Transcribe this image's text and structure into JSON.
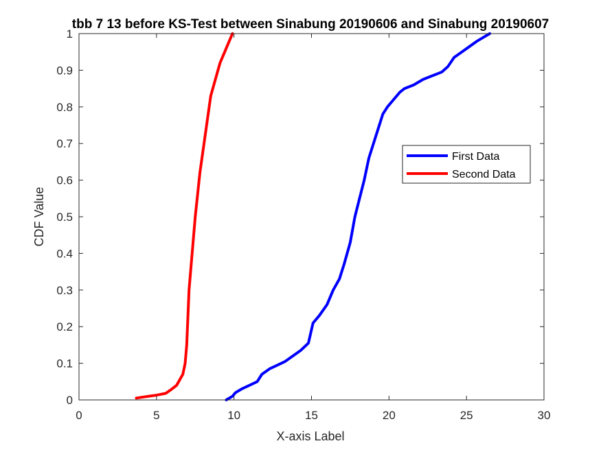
{
  "chart_data": {
    "type": "line",
    "title": "tbb 7 13 before KS-Test between Sinabung 20190606 and Sinabung 20190607",
    "xlabel": "X-axis Label",
    "ylabel": "CDF Value",
    "xlim": [
      0,
      30
    ],
    "ylim": [
      0,
      1
    ],
    "xticks": [
      0,
      5,
      10,
      15,
      20,
      25,
      30
    ],
    "yticks": [
      0,
      0.1,
      0.2,
      0.3,
      0.4,
      0.5,
      0.6,
      0.7,
      0.8,
      0.9,
      1
    ],
    "grid": false,
    "legend_position": "right",
    "series": [
      {
        "name": "First Data",
        "color": "#0000ff",
        "x": [
          9.5,
          9.9,
          10.1,
          10.5,
          11.0,
          11.5,
          11.8,
          12.3,
          12.8,
          13.3,
          13.8,
          14.3,
          14.8,
          15.1,
          15.5,
          16.0,
          16.4,
          16.8,
          17.1,
          17.5,
          17.8,
          18.1,
          18.4,
          18.7,
          19.0,
          19.3,
          19.6,
          19.9,
          20.3,
          20.7,
          21.0,
          21.6,
          22.2,
          22.8,
          23.4,
          23.8,
          24.2,
          24.7,
          25.2,
          25.7,
          26.1,
          26.5
        ],
        "y": [
          0.0,
          0.01,
          0.02,
          0.03,
          0.04,
          0.05,
          0.07,
          0.085,
          0.095,
          0.105,
          0.12,
          0.135,
          0.155,
          0.21,
          0.23,
          0.26,
          0.3,
          0.33,
          0.37,
          0.43,
          0.5,
          0.55,
          0.6,
          0.66,
          0.7,
          0.74,
          0.78,
          0.8,
          0.82,
          0.84,
          0.85,
          0.86,
          0.875,
          0.885,
          0.895,
          0.91,
          0.935,
          0.95,
          0.965,
          0.98,
          0.99,
          1.0
        ]
      },
      {
        "name": "Second Data",
        "color": "#ff0000",
        "x": [
          3.7,
          4.5,
          5.0,
          5.6,
          6.0,
          6.3,
          6.5,
          6.7,
          6.85,
          6.95,
          7.0,
          7.05,
          7.1,
          7.2,
          7.3,
          7.4,
          7.5,
          7.6,
          7.7,
          7.8,
          7.9,
          8.0,
          8.1,
          8.2,
          8.3,
          8.4,
          8.5,
          8.7,
          8.9,
          9.1,
          9.3,
          9.5,
          9.7,
          9.9
        ],
        "y": [
          0.005,
          0.01,
          0.013,
          0.018,
          0.03,
          0.04,
          0.055,
          0.07,
          0.1,
          0.15,
          0.2,
          0.25,
          0.3,
          0.35,
          0.4,
          0.45,
          0.5,
          0.54,
          0.58,
          0.62,
          0.65,
          0.68,
          0.71,
          0.74,
          0.77,
          0.8,
          0.83,
          0.86,
          0.89,
          0.92,
          0.94,
          0.96,
          0.98,
          1.0
        ]
      }
    ]
  }
}
